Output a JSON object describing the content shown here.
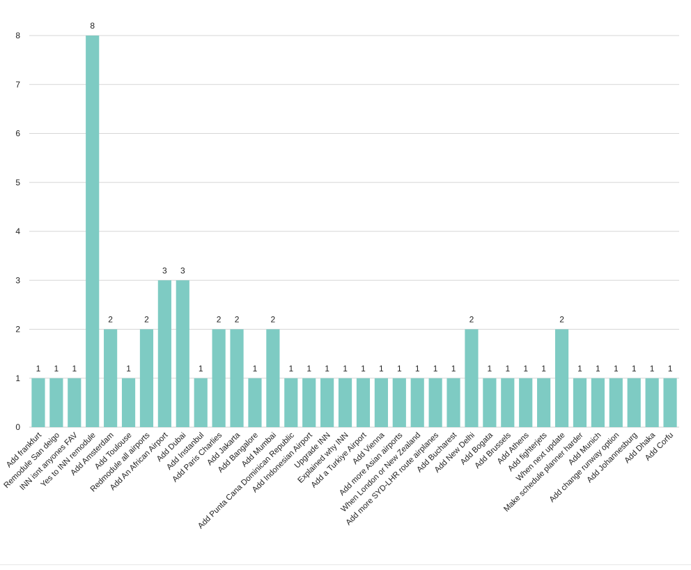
{
  "colors": {
    "bar": "#7ecbc3",
    "grid": "#d6d6d6",
    "text": "#222222"
  },
  "chart_data": {
    "type": "bar",
    "title": "",
    "xlabel": "",
    "ylabel": "",
    "ylim": [
      0,
      8
    ],
    "yticks": [
      0,
      1,
      2,
      3,
      4,
      5,
      6,
      7,
      8
    ],
    "grid": true,
    "data_labels": true,
    "categories": [
      "Add frankfurt",
      "Remodule San deigo",
      "INN isnt anyones FAV",
      "Yes to INN remodule",
      "Add Amsterdam",
      "Add Toulouse",
      "Redmodule all airports",
      "Add An African Airport",
      "Add Dubai",
      "Add Instanbul",
      "Add Paris Charlies",
      "Add Jakarta",
      "Add Bangalore",
      "Add Mumbai",
      "Add Punta Cana Dominican Republic",
      "Add Indonesian Airport",
      "Upgrade INN",
      "Explained why INN",
      "Add a Turkiye Airport",
      "Add Vienna",
      "Add more Asian airports",
      "When London or New Zealand",
      "Add more SYD-LHR route airplanes",
      "Add Bucharest",
      "Add New Delhi",
      "Add Bogata",
      "Add Brussels",
      "Add Athens",
      "Add fighterjets",
      "When next update",
      "Make schedule planner harder",
      "Add Munich",
      "Add change runway option",
      "Add Johannesburg",
      "Add Dhaka",
      "Add Corfu"
    ],
    "values": [
      1,
      1,
      1,
      8,
      2,
      1,
      2,
      3,
      3,
      1,
      2,
      2,
      1,
      2,
      1,
      1,
      1,
      1,
      1,
      1,
      1,
      1,
      1,
      1,
      2,
      1,
      1,
      1,
      1,
      2,
      1,
      1,
      1,
      1,
      1,
      1
    ]
  }
}
